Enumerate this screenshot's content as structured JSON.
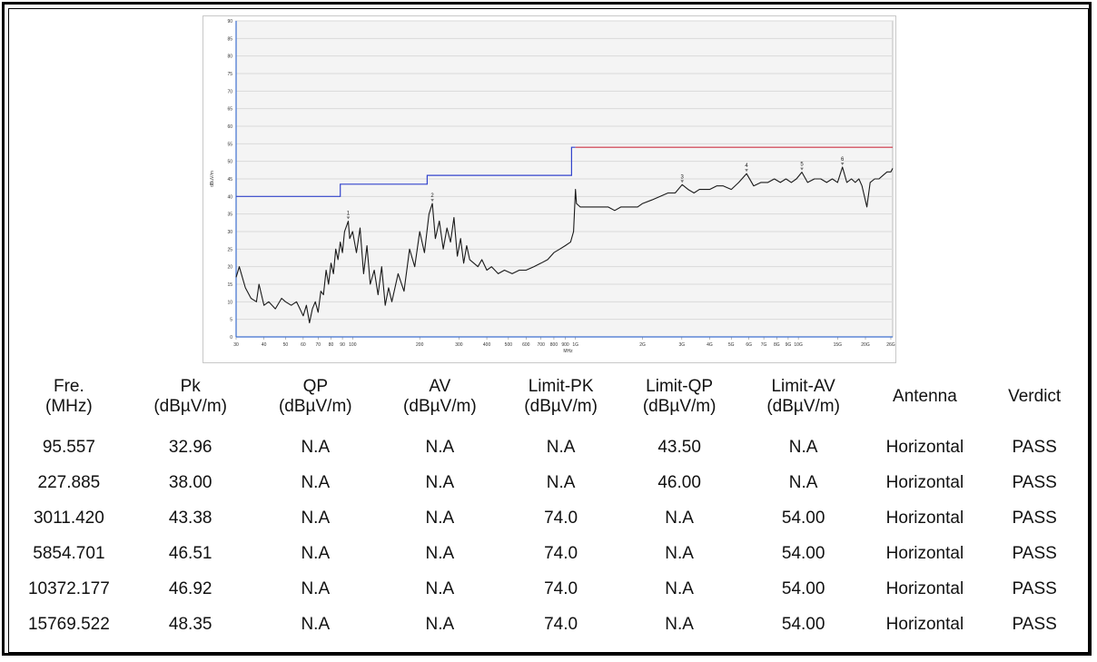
{
  "chart_data": {
    "type": "line",
    "title": "",
    "xlabel": "MHz",
    "ylabel": "dBuV/m",
    "x_scale": "log",
    "xlim": [
      30,
      26500
    ],
    "ylim": [
      0,
      90
    ],
    "y_ticks": [
      0,
      5,
      10,
      15,
      20,
      25,
      30,
      35,
      40,
      45,
      50,
      55,
      60,
      65,
      70,
      75,
      80,
      85,
      90
    ],
    "x_ticks": [
      {
        "value": 30,
        "label": "30"
      },
      {
        "value": 40,
        "label": "40"
      },
      {
        "value": 50,
        "label": "50"
      },
      {
        "value": 60,
        "label": "60"
      },
      {
        "value": 70,
        "label": "70"
      },
      {
        "value": 80,
        "label": "80"
      },
      {
        "value": 90,
        "label": "90"
      },
      {
        "value": 100,
        "label": "100"
      },
      {
        "value": 200,
        "label": "200"
      },
      {
        "value": 300,
        "label": "300"
      },
      {
        "value": 400,
        "label": "400"
      },
      {
        "value": 500,
        "label": "500"
      },
      {
        "value": 600,
        "label": "600"
      },
      {
        "value": 700,
        "label": "700"
      },
      {
        "value": 800,
        "label": "800"
      },
      {
        "value": 900,
        "label": "900"
      },
      {
        "value": 1000,
        "label": "1G"
      },
      {
        "value": 2000,
        "label": "2G"
      },
      {
        "value": 3000,
        "label": "3G"
      },
      {
        "value": 4000,
        "label": "4G"
      },
      {
        "value": 5000,
        "label": "5G"
      },
      {
        "value": 6000,
        "label": "6G"
      },
      {
        "value": 7000,
        "label": "7G"
      },
      {
        "value": 8000,
        "label": "8G"
      },
      {
        "value": 9000,
        "label": "9G"
      },
      {
        "value": 10000,
        "label": "10G"
      },
      {
        "value": 15000,
        "label": "15G"
      },
      {
        "value": 20000,
        "label": "20G"
      },
      {
        "value": 26000,
        "label": "26G"
      }
    ],
    "grid": true,
    "series": [
      {
        "color": "#1a1a1a",
        "x": [
          30,
          31,
          33,
          35,
          37,
          38,
          40,
          42,
          45,
          48,
          50,
          53,
          56,
          58,
          60,
          62,
          64,
          66,
          68,
          70,
          72,
          74,
          76,
          78,
          80,
          82,
          84,
          86,
          88,
          90,
          92,
          95.557,
          97,
          100,
          104,
          108,
          112,
          116,
          120,
          125,
          130,
          135,
          140,
          145,
          150,
          160,
          170,
          180,
          190,
          200,
          210,
          220,
          227.885,
          235,
          245,
          255,
          265,
          275,
          285,
          295,
          305,
          315,
          325,
          335,
          350,
          365,
          380,
          400,
          420,
          450,
          480,
          520,
          560,
          600,
          650,
          700,
          750,
          800,
          850,
          900,
          950,
          980,
          1000,
          1010,
          1050,
          1100,
          1200,
          1300,
          1400,
          1500,
          1600,
          1700,
          1800,
          1900,
          2000,
          2200,
          2400,
          2600,
          2800,
          3011.42,
          3200,
          3400,
          3600,
          3800,
          4000,
          4300,
          4600,
          5000,
          5400,
          5854.701,
          6300,
          6800,
          7300,
          7800,
          8300,
          8800,
          9300,
          9800,
          10372.177,
          11000,
          11800,
          12600,
          13400,
          14200,
          15000,
          15769.522,
          16500,
          17300,
          18000,
          18700,
          19300,
          19800,
          20300,
          21000,
          22000,
          23000,
          24000,
          25000,
          26000,
          26500
        ],
        "y": [
          17,
          20,
          14,
          11,
          10,
          15,
          9,
          10,
          8,
          11,
          10,
          9,
          10,
          8,
          6,
          9,
          4,
          8,
          10,
          7,
          13,
          12,
          19,
          15,
          21,
          18,
          25,
          22,
          27,
          24,
          30,
          32.96,
          28,
          30,
          24,
          31,
          18,
          26,
          15,
          19,
          12,
          20,
          9,
          14,
          10,
          18,
          13,
          25,
          20,
          30,
          24,
          35,
          38.0,
          28,
          33,
          25,
          31,
          27,
          34,
          23,
          28,
          21,
          26,
          22,
          21,
          20,
          22,
          19,
          20,
          18,
          19,
          18,
          19,
          19,
          20,
          21,
          22,
          24,
          25,
          26,
          27,
          30,
          42,
          38,
          37,
          37,
          37,
          37,
          37,
          36,
          37,
          37,
          37,
          37,
          38,
          39,
          40,
          41,
          41,
          43.38,
          42,
          41,
          42,
          42,
          42,
          43,
          43,
          42,
          44,
          46.51,
          43,
          44,
          44,
          45,
          44,
          45,
          44,
          45,
          46.92,
          44,
          45,
          45,
          44,
          45,
          44,
          48.35,
          44,
          45,
          44,
          45,
          43,
          40,
          37,
          44,
          45,
          45,
          46,
          47,
          47,
          48
        ]
      }
    ],
    "limit_lines": [
      {
        "color": "#3344cc",
        "segments": [
          [
            30,
            40.0
          ],
          [
            88,
            40.0
          ],
          [
            88,
            43.5
          ],
          [
            216,
            43.5
          ],
          [
            216,
            46.0
          ],
          [
            960,
            46.0
          ],
          [
            960,
            54.0
          ],
          [
            1000,
            54.0
          ]
        ]
      },
      {
        "color": "#cc3344",
        "segments": [
          [
            1000,
            54.0
          ],
          [
            26500,
            54.0
          ]
        ]
      }
    ],
    "markers": [
      {
        "label": "1",
        "x": 95.557,
        "y": 32.96
      },
      {
        "label": "2",
        "x": 227.885,
        "y": 38.0
      },
      {
        "label": "3",
        "x": 3011.42,
        "y": 43.38
      },
      {
        "label": "4",
        "x": 5854.701,
        "y": 46.51
      },
      {
        "label": "5",
        "x": 10372.177,
        "y": 46.92
      },
      {
        "label": "6",
        "x": 15769.522,
        "y": 48.35
      }
    ]
  },
  "table": {
    "headers": [
      {
        "line1": "Fre.",
        "line2": "(MHz)"
      },
      {
        "line1": "Pk",
        "line2": "(dBµV/m)"
      },
      {
        "line1": "QP",
        "line2": "(dBµV/m)"
      },
      {
        "line1": "AV",
        "line2": "(dBµV/m)"
      },
      {
        "line1": "Limit-PK",
        "line2": "(dBµV/m)"
      },
      {
        "line1": "Limit-QP",
        "line2": "(dBµV/m)"
      },
      {
        "line1": "Limit-AV",
        "line2": "(dBµV/m)"
      },
      {
        "line1": "Antenna",
        "line2": ""
      },
      {
        "line1": "Verdict",
        "line2": ""
      }
    ],
    "rows": [
      [
        "95.557",
        "32.96",
        "N.A",
        "N.A",
        "N.A",
        "43.50",
        "N.A",
        "Horizontal",
        "PASS"
      ],
      [
        "227.885",
        "38.00",
        "N.A",
        "N.A",
        "N.A",
        "46.00",
        "N.A",
        "Horizontal",
        "PASS"
      ],
      [
        "3011.420",
        "43.38",
        "N.A",
        "N.A",
        "74.0",
        "N.A",
        "54.00",
        "Horizontal",
        "PASS"
      ],
      [
        "5854.701",
        "46.51",
        "N.A",
        "N.A",
        "74.0",
        "N.A",
        "54.00",
        "Horizontal",
        "PASS"
      ],
      [
        "10372.177",
        "46.92",
        "N.A",
        "N.A",
        "74.0",
        "N.A",
        "54.00",
        "Horizontal",
        "PASS"
      ],
      [
        "15769.522",
        "48.35",
        "N.A",
        "N.A",
        "74.0",
        "N.A",
        "54.00",
        "Horizontal",
        "PASS"
      ]
    ]
  }
}
